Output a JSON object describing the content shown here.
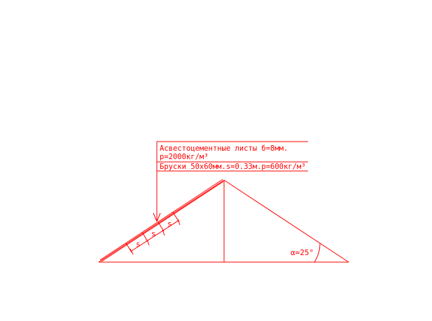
{
  "drawing": {
    "color": "#ff0000",
    "callout": {
      "line1": "Асвестоцементные листы б=8мм.",
      "line2": "p=2000кг/м³",
      "line3": "Бруски 50х60мм.s=0.33м.p=600кг/м³"
    },
    "spacing_label": "s",
    "angle_label": "α=25°"
  }
}
